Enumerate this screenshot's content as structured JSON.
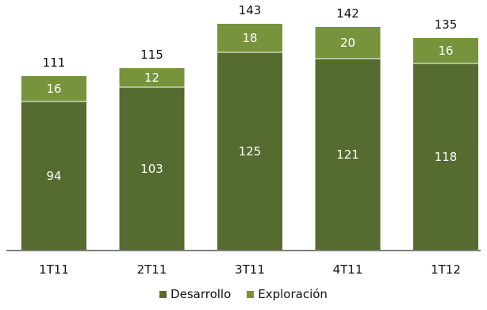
{
  "chart_data": {
    "type": "bar",
    "stacked": true,
    "categories": [
      "1T11",
      "2T11",
      "3T11",
      "4T11",
      "1T12"
    ],
    "series": [
      {
        "name": "Desarrollo",
        "values": [
          94,
          103,
          125,
          121,
          118
        ],
        "color": "#556b2f"
      },
      {
        "name": "Exploración",
        "values": [
          16,
          12,
          18,
          20,
          16
        ],
        "color": "#77933c"
      }
    ],
    "totals": [
      111,
      115,
      143,
      142,
      135
    ],
    "title": "",
    "xlabel": "",
    "ylabel": "",
    "ylim": [
      0,
      150
    ],
    "grid": false,
    "legend": "bottom-center",
    "axis_color": "#7f7f7f"
  }
}
